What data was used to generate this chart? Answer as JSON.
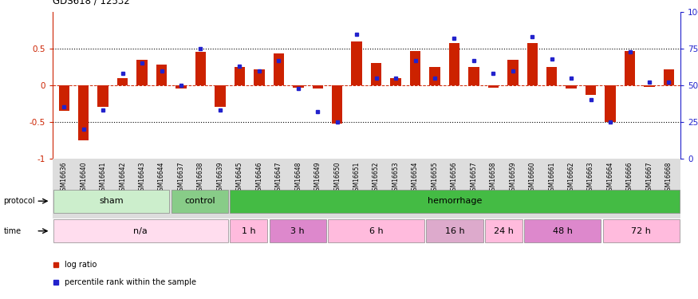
{
  "title": "GDS618 / 12532",
  "samples": [
    "GSM16636",
    "GSM16640",
    "GSM16641",
    "GSM16642",
    "GSM16643",
    "GSM16644",
    "GSM16637",
    "GSM16638",
    "GSM16639",
    "GSM16645",
    "GSM16646",
    "GSM16647",
    "GSM16648",
    "GSM16649",
    "GSM16650",
    "GSM16651",
    "GSM16652",
    "GSM16653",
    "GSM16654",
    "GSM16655",
    "GSM16656",
    "GSM16657",
    "GSM16658",
    "GSM16659",
    "GSM16660",
    "GSM16661",
    "GSM16662",
    "GSM16663",
    "GSM16664",
    "GSM16666",
    "GSM16667",
    "GSM16668"
  ],
  "log_ratio": [
    -0.35,
    -0.75,
    -0.3,
    0.1,
    0.35,
    0.28,
    -0.05,
    0.46,
    -0.3,
    0.25,
    0.22,
    0.43,
    -0.03,
    -0.05,
    -0.52,
    0.6,
    0.3,
    0.1,
    0.47,
    0.25,
    0.58,
    0.25,
    -0.03,
    0.35,
    0.58,
    0.25,
    -0.05,
    -0.13,
    -0.5,
    0.47,
    -0.02,
    0.22
  ],
  "percentile": [
    35,
    20,
    33,
    58,
    65,
    60,
    50,
    75,
    33,
    63,
    60,
    67,
    48,
    32,
    25,
    85,
    55,
    55,
    67,
    55,
    82,
    67,
    58,
    60,
    83,
    68,
    55,
    40,
    25,
    73,
    52,
    52
  ],
  "bar_color": "#cc2200",
  "dot_color": "#2222cc",
  "bg_color": "#ffffff",
  "ymin": -1.0,
  "ymax": 1.0,
  "protocol_groups": [
    {
      "label": "sham",
      "start": 0,
      "end": 5,
      "color": "#cceecc"
    },
    {
      "label": "control",
      "start": 6,
      "end": 8,
      "color": "#88cc88"
    },
    {
      "label": "hemorrhage",
      "start": 9,
      "end": 31,
      "color": "#44bb44"
    }
  ],
  "time_groups": [
    {
      "label": "n/a",
      "start": 0,
      "end": 8,
      "color": "#ffddee"
    },
    {
      "label": "1 h",
      "start": 9,
      "end": 10,
      "color": "#ffbbdd"
    },
    {
      "label": "3 h",
      "start": 11,
      "end": 13,
      "color": "#dd88cc"
    },
    {
      "label": "6 h",
      "start": 14,
      "end": 18,
      "color": "#ffbbdd"
    },
    {
      "label": "16 h",
      "start": 19,
      "end": 21,
      "color": "#ddaacc"
    },
    {
      "label": "24 h",
      "start": 22,
      "end": 23,
      "color": "#ffbbdd"
    },
    {
      "label": "48 h",
      "start": 24,
      "end": 27,
      "color": "#dd88cc"
    },
    {
      "label": "72 h",
      "start": 28,
      "end": 31,
      "color": "#ffbbdd"
    }
  ],
  "legend_items": [
    {
      "label": "log ratio",
      "color": "#cc2200"
    },
    {
      "label": "percentile rank within the sample",
      "color": "#2222cc"
    }
  ]
}
